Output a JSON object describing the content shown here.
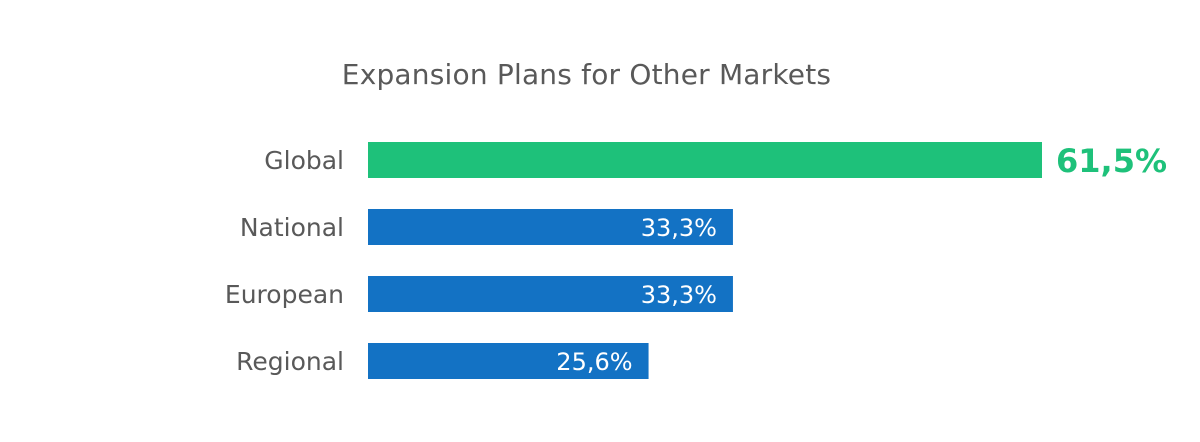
{
  "chart_data": {
    "type": "bar",
    "orientation": "horizontal",
    "title": "Expansion Plans for Other Markets",
    "categories": [
      "Global",
      "National",
      "European",
      "Regional"
    ],
    "values": [
      61.5,
      33.3,
      33.3,
      25.6
    ],
    "value_labels": [
      "61,5%",
      "33,3%",
      "33,3%",
      "25,6%"
    ],
    "value_label_inside": [
      false,
      true,
      true,
      true
    ],
    "bar_colors": [
      "#1EC17A",
      "#1372C4",
      "#1372C4",
      "#1372C4"
    ],
    "xlim": [
      0,
      61.5
    ],
    "grid": false,
    "legend": "none",
    "xlabel": "",
    "ylabel": ""
  }
}
